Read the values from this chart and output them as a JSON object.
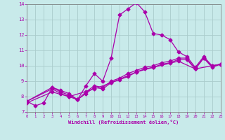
{
  "xlabel": "Windchill (Refroidissement éolien,°C)",
  "bg_color": "#c8eaea",
  "grid_color": "#aacccc",
  "line_color": "#aa00aa",
  "xlim": [
    0,
    23
  ],
  "ylim": [
    7,
    14
  ],
  "yticks": [
    7,
    8,
    9,
    10,
    11,
    12,
    13,
    14
  ],
  "xticks": [
    0,
    1,
    2,
    3,
    4,
    5,
    6,
    7,
    8,
    9,
    10,
    11,
    12,
    13,
    14,
    15,
    16,
    17,
    18,
    19,
    20,
    21,
    22,
    23
  ],
  "curve1_x": [
    0,
    1,
    2,
    3,
    4,
    5,
    6,
    7,
    8,
    9,
    10,
    11,
    12,
    13,
    14,
    15,
    16,
    17,
    18,
    19,
    20,
    21,
    22,
    23
  ],
  "curve1_y": [
    7.7,
    7.4,
    7.6,
    8.6,
    8.4,
    8.2,
    7.8,
    8.7,
    9.5,
    9.0,
    10.5,
    13.3,
    13.7,
    14.1,
    13.5,
    12.1,
    12.0,
    11.7,
    10.9,
    10.6,
    9.9,
    10.6,
    10.0,
    10.1
  ],
  "curve2_x": [
    0,
    3,
    4,
    5,
    6,
    7,
    8,
    9,
    10,
    11,
    12,
    13,
    14,
    15,
    16,
    17,
    18,
    19,
    20,
    21,
    22,
    23
  ],
  "curve2_y": [
    7.7,
    8.6,
    8.3,
    8.1,
    7.8,
    8.3,
    8.7,
    8.6,
    9.0,
    9.2,
    9.5,
    9.7,
    9.9,
    10.0,
    10.2,
    10.3,
    10.5,
    10.5,
    9.8,
    10.5,
    10.0,
    10.1
  ],
  "curve3_x": [
    0,
    3,
    4,
    5,
    6,
    7,
    8,
    9,
    10,
    11,
    12,
    13,
    14,
    15,
    16,
    17,
    18,
    19,
    20,
    21,
    22,
    23
  ],
  "curve3_y": [
    7.7,
    8.5,
    8.2,
    8.0,
    7.8,
    8.2,
    8.6,
    8.5,
    8.9,
    9.1,
    9.3,
    9.6,
    9.8,
    9.9,
    10.1,
    10.2,
    10.4,
    10.4,
    9.8,
    10.5,
    9.9,
    10.1
  ],
  "curve4_x": [
    0,
    3,
    5,
    8,
    10,
    13,
    15,
    18,
    20,
    23
  ],
  "curve4_y": [
    7.6,
    8.3,
    8.0,
    8.5,
    8.9,
    9.6,
    9.9,
    10.3,
    9.8,
    10.1
  ]
}
